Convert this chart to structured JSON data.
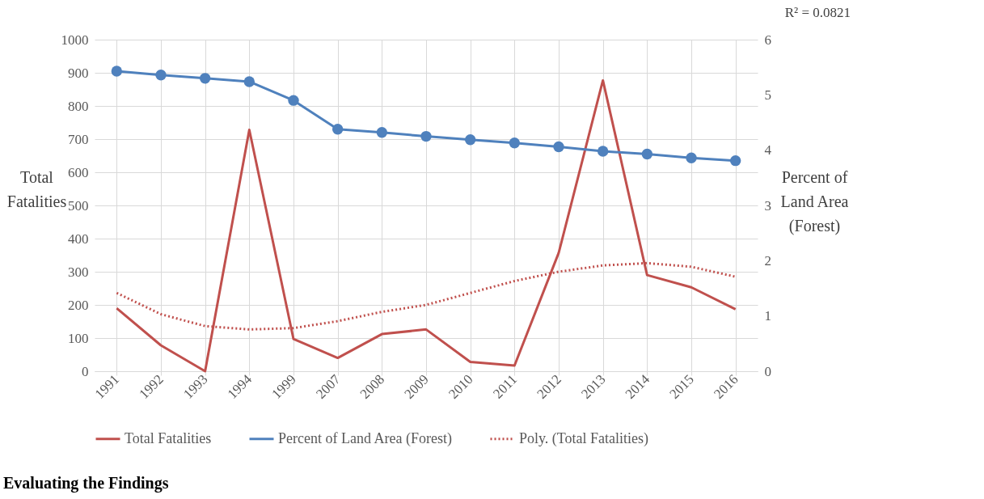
{
  "chart_data": {
    "type": "line",
    "categories": [
      "1991",
      "1992",
      "1993",
      "1994",
      "1999",
      "2007",
      "2008",
      "2009",
      "2010",
      "2011",
      "2012",
      "2013",
      "2014",
      "2015",
      "2016"
    ],
    "ylabel": "Total Fatalities",
    "y2label": "Percent of Land Area (Forest)",
    "ylim": [
      0,
      1000
    ],
    "yticks": [
      0,
      100,
      200,
      300,
      400,
      500,
      600,
      700,
      800,
      900,
      1000
    ],
    "y2lim": [
      0,
      6
    ],
    "y2ticks": [
      0,
      1,
      2,
      3,
      4,
      5,
      6
    ],
    "grid": true,
    "legend": "bottom",
    "series": [
      {
        "name": "Total Fatalities",
        "color": "#c0504d",
        "line_style": "solid",
        "values": [
          190,
          78,
          0,
          728,
          97,
          40,
          112,
          126,
          28,
          17,
          357,
          877,
          290,
          253,
          187
        ]
      },
      {
        "name": "Percent of Land Area (Forest)",
        "color": "#4f81bd",
        "axis": "y2",
        "marker": "circle",
        "line_style": "solid",
        "values": [
          5.43,
          5.36,
          5.3,
          5.24,
          4.9,
          4.38,
          4.32,
          4.25,
          4.19,
          4.13,
          4.06,
          3.98,
          3.93,
          3.86,
          3.81
        ]
      },
      {
        "name": "Poly. (Total Fatalities)",
        "color": "#c0504d",
        "line_style": "dotted",
        "values": [
          236,
          172,
          136,
          126,
          130,
          151,
          179,
          200,
          236,
          272,
          300,
          319,
          326,
          315,
          285
        ]
      }
    ],
    "annotations": [
      "R² = 0.0821",
      "Evaluating the Findings"
    ]
  }
}
